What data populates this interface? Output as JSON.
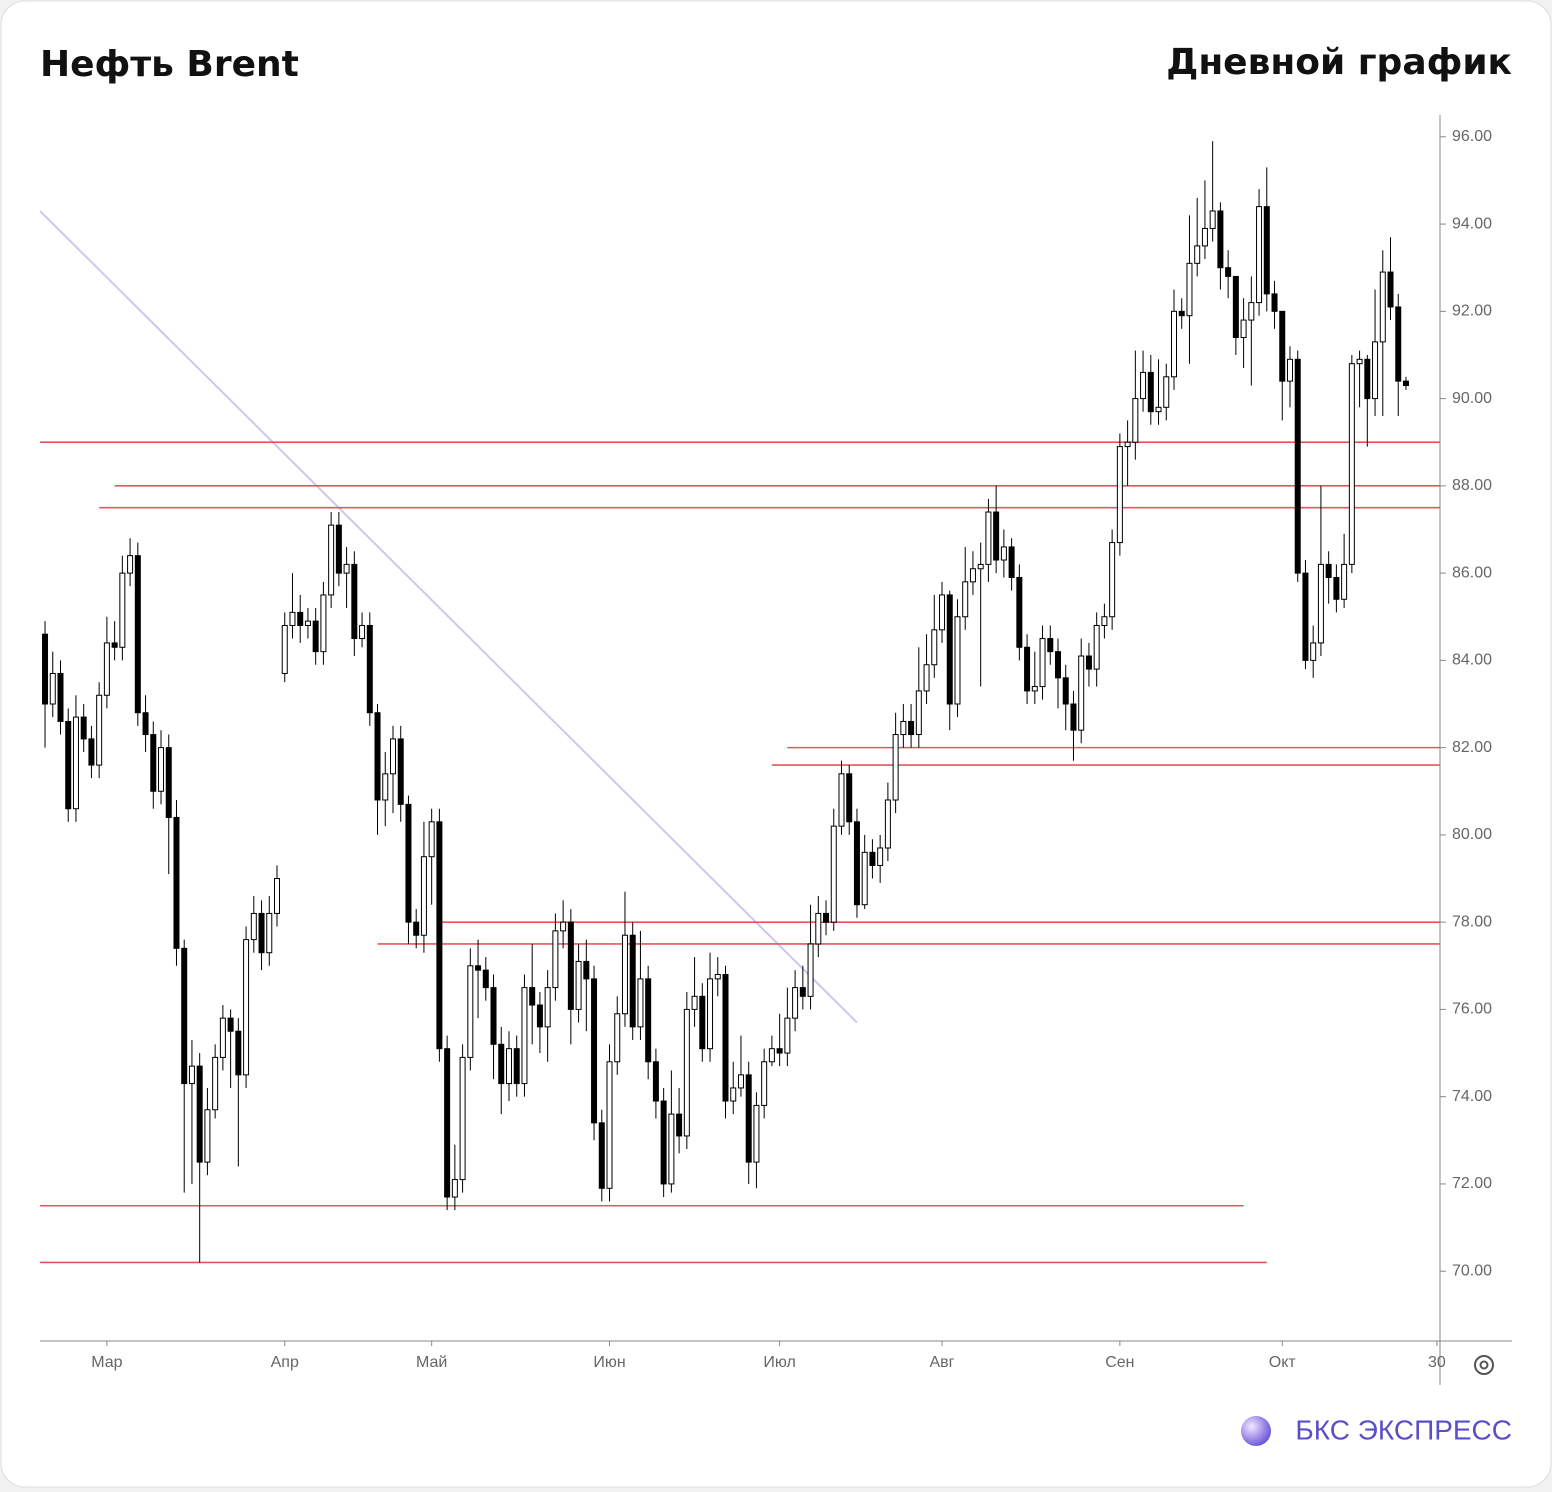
{
  "chart_data": {
    "type": "candlestick",
    "title": "Нефть Brent",
    "subtitle": "Дневной график",
    "brand": "БКС ЭКСПРЕСС",
    "up_color": "#ffffff",
    "down_color": "#000000",
    "open": [
      84.6,
      83.0,
      83.7,
      82.6,
      80.6,
      82.7,
      82.2,
      81.6,
      83.2,
      84.4,
      84.3,
      86.0,
      86.4,
      82.8,
      82.3,
      81.0,
      82.0,
      80.4,
      77.4,
      74.3,
      74.7,
      72.5,
      73.7,
      74.9,
      75.8,
      75.5,
      74.5,
      77.6,
      78.2,
      77.3,
      78.2,
      83.7,
      84.8,
      85.1,
      84.8,
      84.9,
      84.2,
      85.5,
      87.1,
      86.0,
      86.2,
      84.5,
      84.8,
      82.8,
      80.8,
      81.4,
      82.2,
      80.7,
      78.0,
      77.7,
      79.5,
      80.3,
      75.1,
      71.7,
      72.1,
      74.9,
      77.0,
      76.9,
      76.5,
      75.2,
      74.3,
      75.1,
      74.3,
      76.5,
      76.1,
      75.6,
      76.5,
      77.8,
      78.0,
      76.0,
      77.1,
      76.7,
      73.4,
      71.9,
      74.8,
      75.9,
      77.7,
      75.6,
      76.7,
      74.8,
      73.9,
      72.0,
      73.6,
      73.1,
      76.0,
      76.3,
      75.1,
      76.7,
      76.8,
      73.9,
      74.2,
      74.5,
      72.5,
      73.8,
      74.8,
      75.1,
      75.0,
      75.8,
      76.5,
      76.3,
      77.5,
      78.2,
      78.0,
      80.2,
      81.4,
      80.3,
      78.4,
      79.6,
      79.3,
      79.7,
      80.8,
      82.3,
      82.6,
      82.3,
      83.3,
      83.9,
      84.7,
      85.5,
      83.0,
      85.0,
      85.8,
      86.1,
      86.2,
      87.4,
      86.3,
      86.6,
      85.9,
      84.3,
      83.3,
      83.4,
      84.5,
      84.2,
      83.6,
      83.0,
      82.4,
      84.1,
      83.8,
      84.8,
      85.0,
      86.7,
      88.9,
      89.0,
      90.0,
      90.6,
      89.7,
      89.8,
      90.5,
      92.0,
      91.9,
      93.1,
      93.5,
      93.9,
      94.3,
      93.0,
      92.8,
      91.4,
      91.8,
      92.2,
      94.4,
      92.4,
      92.0,
      90.4,
      90.9,
      86.0,
      84.0,
      84.4,
      86.2,
      85.9,
      85.4,
      86.2,
      90.8,
      90.9,
      90.0,
      91.3,
      92.9,
      92.1,
      90.4
    ],
    "high": [
      84.9,
      84.2,
      84.0,
      82.9,
      83.2,
      83.0,
      82.5,
      83.5,
      85.0,
      84.9,
      86.4,
      86.8,
      86.7,
      83.2,
      82.6,
      82.4,
      82.3,
      80.8,
      77.6,
      75.3,
      75.0,
      74.2,
      75.2,
      76.1,
      76.0,
      75.8,
      77.9,
      78.6,
      78.5,
      78.6,
      79.3,
      85.1,
      86.0,
      85.5,
      85.2,
      85.2,
      85.8,
      87.4,
      87.4,
      86.6,
      86.5,
      85.1,
      85.1,
      83.0,
      81.9,
      82.5,
      82.5,
      80.9,
      78.3,
      80.3,
      80.6,
      80.6,
      75.4,
      72.9,
      75.2,
      77.4,
      77.6,
      77.2,
      76.8,
      75.6,
      75.5,
      75.4,
      76.8,
      77.5,
      76.4,
      76.9,
      78.2,
      78.5,
      78.3,
      77.5,
      77.6,
      77.0,
      73.7,
      75.2,
      76.3,
      78.7,
      78.0,
      77.8,
      77.0,
      75.1,
      74.2,
      74.6,
      74.2,
      76.4,
      77.2,
      76.6,
      77.3,
      77.2,
      77.0,
      74.8,
      75.4,
      74.8,
      74.1,
      75.1,
      75.4,
      75.9,
      76.5,
      76.9,
      77.0,
      78.4,
      78.6,
      78.5,
      80.6,
      81.7,
      81.6,
      80.6,
      80.0,
      79.9,
      80.0,
      81.2,
      82.8,
      83.0,
      83.0,
      84.3,
      84.6,
      85.5,
      85.8,
      85.6,
      85.4,
      86.6,
      86.5,
      86.7,
      87.7,
      88.0,
      87.0,
      86.8,
      86.2,
      84.6,
      84.2,
      84.8,
      84.8,
      84.5,
      83.9,
      83.3,
      84.5,
      84.4,
      85.1,
      85.3,
      87.0,
      89.2,
      89.5,
      91.1,
      91.1,
      91.0,
      90.9,
      90.8,
      92.5,
      92.3,
      94.2,
      94.6,
      95.0,
      95.9,
      94.5,
      93.4,
      92.6,
      92.3,
      92.8,
      94.8,
      95.3,
      92.7,
      92.0,
      91.2,
      91.1,
      86.3,
      84.8,
      88.0,
      86.5,
      86.2,
      86.9,
      91.0,
      91.1,
      91.0,
      92.5,
      93.4,
      93.7,
      92.4,
      90.5
    ],
    "low": [
      82.0,
      82.7,
      82.3,
      80.3,
      80.3,
      81.9,
      81.3,
      81.3,
      82.9,
      84.0,
      84.0,
      85.7,
      82.5,
      81.9,
      80.6,
      80.7,
      79.1,
      77.0,
      71.8,
      72.0,
      70.2,
      72.2,
      73.5,
      74.6,
      74.2,
      72.4,
      74.2,
      77.3,
      76.9,
      77.0,
      77.9,
      83.5,
      84.5,
      84.4,
      84.5,
      83.9,
      83.9,
      85.2,
      85.7,
      85.2,
      84.1,
      84.3,
      82.5,
      80.0,
      80.2,
      80.5,
      80.3,
      77.5,
      77.4,
      77.3,
      78.4,
      74.8,
      71.4,
      71.4,
      71.8,
      74.6,
      75.8,
      76.2,
      74.4,
      73.6,
      73.9,
      74.0,
      74.0,
      75.2,
      75.0,
      74.8,
      76.2,
      77.4,
      75.2,
      75.7,
      75.5,
      73.0,
      71.6,
      71.6,
      74.5,
      75.6,
      75.3,
      75.3,
      74.4,
      73.5,
      71.7,
      71.8,
      72.7,
      72.8,
      75.6,
      74.8,
      74.8,
      76.3,
      73.5,
      73.6,
      74.0,
      72.0,
      71.9,
      73.5,
      74.7,
      74.7,
      74.7,
      75.5,
      76.0,
      76.0,
      77.2,
      77.7,
      77.8,
      80.0,
      80.0,
      78.1,
      78.3,
      79.0,
      78.9,
      79.4,
      80.5,
      82.0,
      82.0,
      82.0,
      83.0,
      83.6,
      84.4,
      82.4,
      82.7,
      84.7,
      85.5,
      83.4,
      85.8,
      86.0,
      85.9,
      85.6,
      84.0,
      83.0,
      83.0,
      83.1,
      83.9,
      82.9,
      82.4,
      81.7,
      82.1,
      83.4,
      83.4,
      84.5,
      84.7,
      86.4,
      88.0,
      88.6,
      89.7,
      89.4,
      89.4,
      89.5,
      90.2,
      91.6,
      90.8,
      92.8,
      93.2,
      93.6,
      92.5,
      92.3,
      91.0,
      90.7,
      90.3,
      91.9,
      92.0,
      91.6,
      89.5,
      89.8,
      85.8,
      83.8,
      83.6,
      84.1,
      85.3,
      85.1,
      85.2,
      86.0,
      89.8,
      88.9,
      89.6,
      89.6,
      91.8,
      89.6,
      90.2
    ],
    "close": [
      83.0,
      83.7,
      82.6,
      80.6,
      82.7,
      82.2,
      81.6,
      83.2,
      84.4,
      84.3,
      86.0,
      86.4,
      82.8,
      82.3,
      81.0,
      82.0,
      80.4,
      77.4,
      74.3,
      74.7,
      72.5,
      73.7,
      74.9,
      75.8,
      75.5,
      74.5,
      77.6,
      78.2,
      77.3,
      78.2,
      79.0,
      84.8,
      85.1,
      84.8,
      84.9,
      84.2,
      85.5,
      87.1,
      86.0,
      86.2,
      84.5,
      84.8,
      82.8,
      80.8,
      81.4,
      82.2,
      80.7,
      78.0,
      77.7,
      79.5,
      80.3,
      75.1,
      71.7,
      72.1,
      74.9,
      77.0,
      76.9,
      76.5,
      75.2,
      74.3,
      75.1,
      74.3,
      76.5,
      76.1,
      75.6,
      76.5,
      77.8,
      78.0,
      76.0,
      77.1,
      76.7,
      73.4,
      71.9,
      74.8,
      75.9,
      77.7,
      75.6,
      76.7,
      74.8,
      73.9,
      72.0,
      73.6,
      73.1,
      76.0,
      76.3,
      75.1,
      76.7,
      76.8,
      73.9,
      74.2,
      74.5,
      72.5,
      73.8,
      74.8,
      75.1,
      75.0,
      75.8,
      76.5,
      76.3,
      77.5,
      78.2,
      78.0,
      80.2,
      81.4,
      80.3,
      78.4,
      79.6,
      79.3,
      79.7,
      80.8,
      82.3,
      82.6,
      82.3,
      83.3,
      83.9,
      84.7,
      85.5,
      83.0,
      85.0,
      85.8,
      86.1,
      86.2,
      87.4,
      86.3,
      86.6,
      85.9,
      84.3,
      83.3,
      83.4,
      84.5,
      84.2,
      83.6,
      83.0,
      82.4,
      84.1,
      83.8,
      84.8,
      85.0,
      86.7,
      88.9,
      89.0,
      90.0,
      90.6,
      89.7,
      89.8,
      90.5,
      92.0,
      91.9,
      93.1,
      93.5,
      93.9,
      94.3,
      93.0,
      92.8,
      91.4,
      91.8,
      92.2,
      94.4,
      92.4,
      92.0,
      90.4,
      90.9,
      86.0,
      84.0,
      84.4,
      86.2,
      85.9,
      85.4,
      86.2,
      90.8,
      90.9,
      90.0,
      91.3,
      92.9,
      92.1,
      90.4,
      90.3
    ],
    "xlim": [
      -0.65,
      180.4
    ],
    "xticks": [
      {
        "value": 8,
        "label": "Мар"
      },
      {
        "value": 31,
        "label": "Апр"
      },
      {
        "value": 50,
        "label": "Май"
      },
      {
        "value": 73,
        "label": "Июн"
      },
      {
        "value": 95,
        "label": "Июл"
      },
      {
        "value": 116,
        "label": "Авг"
      },
      {
        "value": 139,
        "label": "Сен"
      },
      {
        "value": 160,
        "label": "Окт"
      },
      {
        "value": 180,
        "label": "30"
      }
    ],
    "ylim": [
      68.4,
      96.5
    ],
    "yticks": [
      {
        "value": 70,
        "label": "70.00"
      },
      {
        "value": 72,
        "label": "72.00"
      },
      {
        "value": 74,
        "label": "74.00"
      },
      {
        "value": 76,
        "label": "76.00"
      },
      {
        "value": 78,
        "label": "78.00"
      },
      {
        "value": 80,
        "label": "80.00"
      },
      {
        "value": 82,
        "label": "82.00"
      },
      {
        "value": 84,
        "label": "84.00"
      },
      {
        "value": 86,
        "label": "86.00"
      },
      {
        "value": 88,
        "label": "88.00"
      },
      {
        "value": 90,
        "label": "90.00"
      },
      {
        "value": 92,
        "label": "92.00"
      },
      {
        "value": 94,
        "label": "94.00"
      },
      {
        "value": 96,
        "label": "96.00"
      }
    ],
    "level_color": "#e8545c",
    "levels": [
      {
        "value": 89.0
      },
      {
        "value": 88.0,
        "from": 9
      },
      {
        "value": 87.5,
        "from": 7
      },
      {
        "value": 82.0,
        "from": 96
      },
      {
        "value": 81.6,
        "from": 94
      },
      {
        "value": 78.0,
        "from": 51
      },
      {
        "value": 77.5,
        "from": 43
      },
      {
        "value": 71.5,
        "to": 155
      },
      {
        "value": 70.2,
        "to": 158
      }
    ],
    "trendline": {
      "color": "#c9c9f2",
      "x": [
        -0.65,
        105
      ],
      "y": [
        94.3,
        75.7
      ]
    }
  }
}
